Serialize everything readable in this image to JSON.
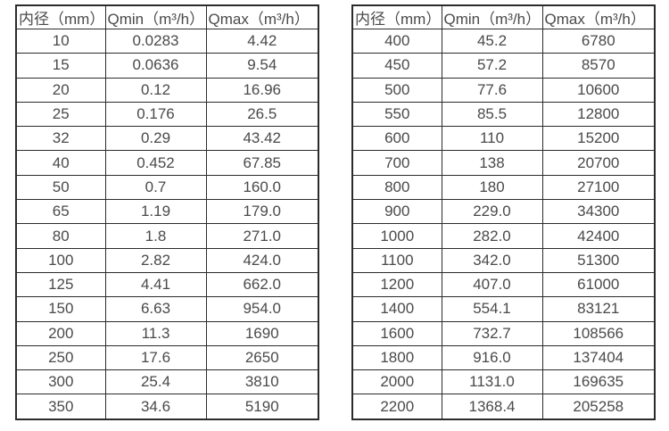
{
  "colors": {
    "background": "#ffffff",
    "border": "#2b2b2b",
    "text": "#4a4a4a"
  },
  "tables": [
    {
      "headers": [
        "内径（mm）",
        "Qmin（m³/h）",
        "Qmax（m³/h）"
      ],
      "rows": [
        [
          "10",
          "0.0283",
          "4.42"
        ],
        [
          "15",
          "0.0636",
          "9.54"
        ],
        [
          "20",
          "0.12",
          "16.96"
        ],
        [
          "25",
          "0.176",
          "26.5"
        ],
        [
          "32",
          "0.29",
          "43.42"
        ],
        [
          "40",
          "0.452",
          "67.85"
        ],
        [
          "50",
          "0.7",
          "160.0"
        ],
        [
          "65",
          "1.19",
          "179.0"
        ],
        [
          "80",
          "1.8",
          "271.0"
        ],
        [
          "100",
          "2.82",
          "424.0"
        ],
        [
          "125",
          "4.41",
          "662.0"
        ],
        [
          "150",
          "6.63",
          "954.0"
        ],
        [
          "200",
          "11.3",
          "1690"
        ],
        [
          "250",
          "17.6",
          "2650"
        ],
        [
          "300",
          "25.4",
          "3810"
        ],
        [
          "350",
          "34.6",
          "5190"
        ]
      ]
    },
    {
      "headers": [
        "内径（mm）",
        "Qmin（m³/h）",
        "Qmax（m³/h）"
      ],
      "rows": [
        [
          "400",
          "45.2",
          "6780"
        ],
        [
          "450",
          "57.2",
          "8570"
        ],
        [
          "500",
          "77.6",
          "10600"
        ],
        [
          "550",
          "85.5",
          "12800"
        ],
        [
          "600",
          "110",
          "15200"
        ],
        [
          "700",
          "138",
          "20700"
        ],
        [
          "800",
          "180",
          "27100"
        ],
        [
          "900",
          "229.0",
          "34300"
        ],
        [
          "1000",
          "282.0",
          "42400"
        ],
        [
          "1100",
          "342.0",
          "51300"
        ],
        [
          "1200",
          "407.0",
          "61000"
        ],
        [
          "1400",
          "554.1",
          "83121"
        ],
        [
          "1600",
          "732.7",
          "108566"
        ],
        [
          "1800",
          "916.0",
          "137404"
        ],
        [
          "2000",
          "1131.0",
          "169635"
        ],
        [
          "2200",
          "1368.4",
          "205258"
        ]
      ]
    }
  ]
}
